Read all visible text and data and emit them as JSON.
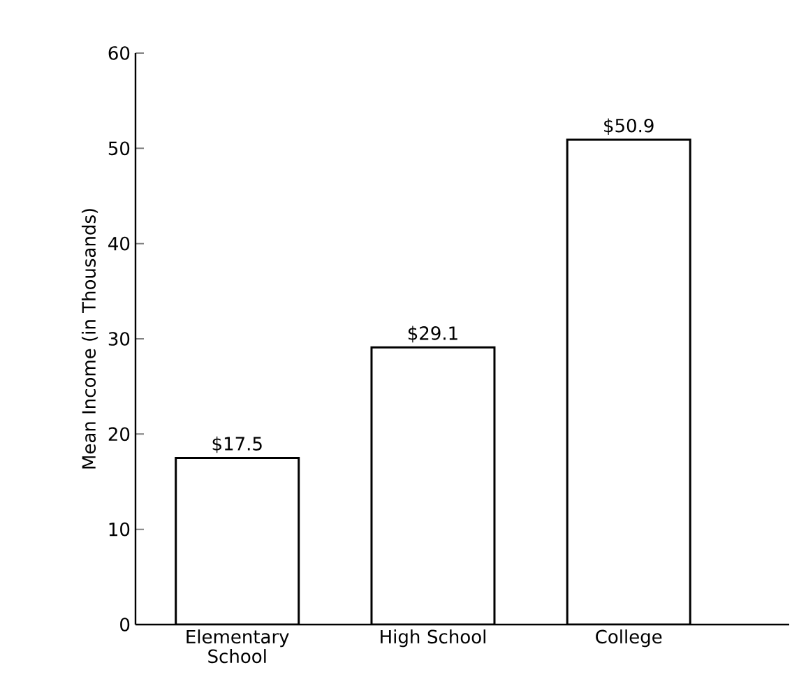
{
  "chart_data": {
    "type": "bar",
    "ylabel": "Mean Income (in Thousands)",
    "categories": [
      "Elementary School",
      "High School",
      "College"
    ],
    "values": [
      17.5,
      29.1,
      50.9
    ],
    "value_labels": [
      "$17.5",
      "$29.1",
      "$50.9"
    ],
    "color": "#ffffff",
    "ylim": [
      0,
      60
    ],
    "yticks": [
      0,
      10,
      20,
      30,
      40,
      50,
      60
    ],
    "grid": false
  }
}
